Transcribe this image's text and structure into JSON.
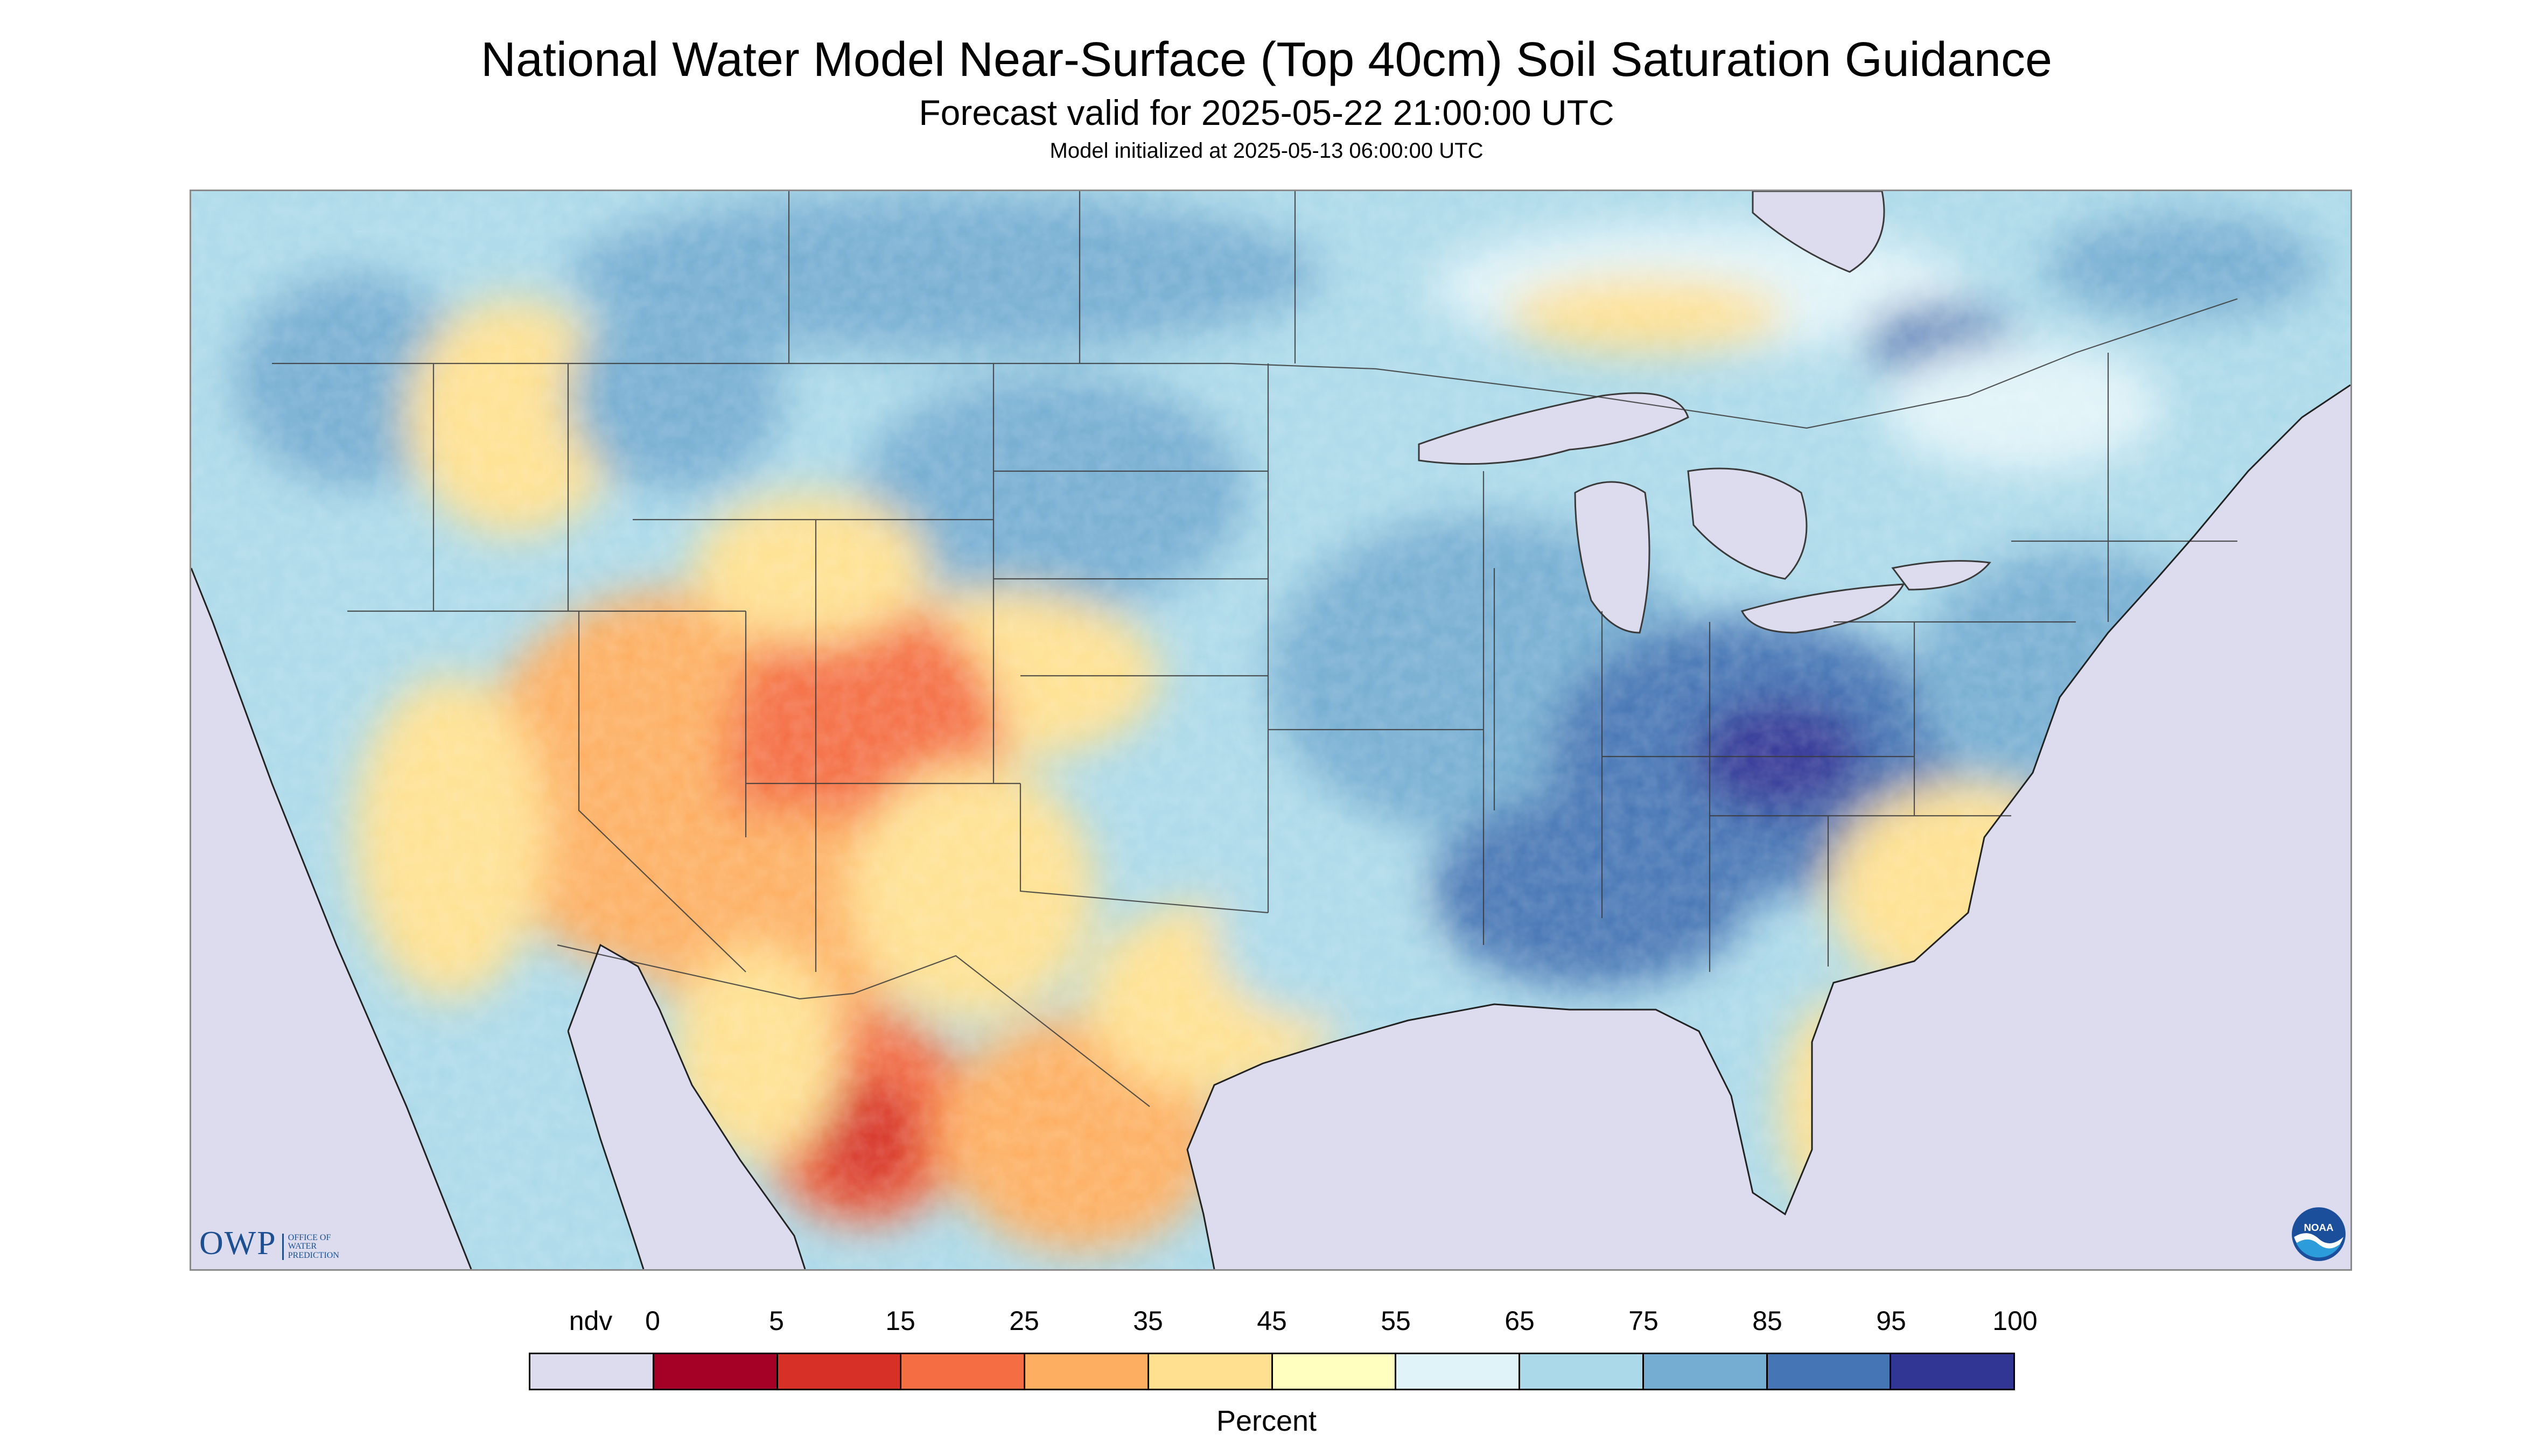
{
  "header": {
    "title": "National Water Model Near-Surface (Top 40cm) Soil Saturation Guidance",
    "subtitle": "Forecast valid for 2025-05-22 21:00:00 UTC",
    "init": "Model initialized at 2025-05-13 06:00:00 UTC"
  },
  "logos": {
    "owp_mark": "OWP",
    "owp_text": [
      "OFFICE OF",
      "WATER",
      "PREDICTION"
    ],
    "noaa_text": "NOAA"
  },
  "legend": {
    "unit": "Percent",
    "labels": [
      "ndv",
      "0",
      "5",
      "15",
      "25",
      "35",
      "45",
      "55",
      "65",
      "75",
      "85",
      "95",
      "100"
    ],
    "bins": [
      {
        "label": "ndv",
        "color": "#dcdcee"
      },
      {
        "label": "0-5",
        "color": "#a50026"
      },
      {
        "label": "5-15",
        "color": "#d73027"
      },
      {
        "label": "15-25",
        "color": "#f46d43"
      },
      {
        "label": "25-35",
        "color": "#fdae61"
      },
      {
        "label": "35-45",
        "color": "#fee090"
      },
      {
        "label": "45-55",
        "color": "#ffffbf"
      },
      {
        "label": "55-65",
        "color": "#e0f3f8"
      },
      {
        "label": "65-75",
        "color": "#abd9e9"
      },
      {
        "label": "75-85",
        "color": "#74add1"
      },
      {
        "label": "85-95",
        "color": "#4575b4"
      },
      {
        "label": "95-100",
        "color": "#313695"
      }
    ]
  },
  "colors": {
    "nodata": "#dcdcee",
    "water": "#dcdcee",
    "border": "#3a3a3a",
    "frame": "#8a8a8a"
  }
}
